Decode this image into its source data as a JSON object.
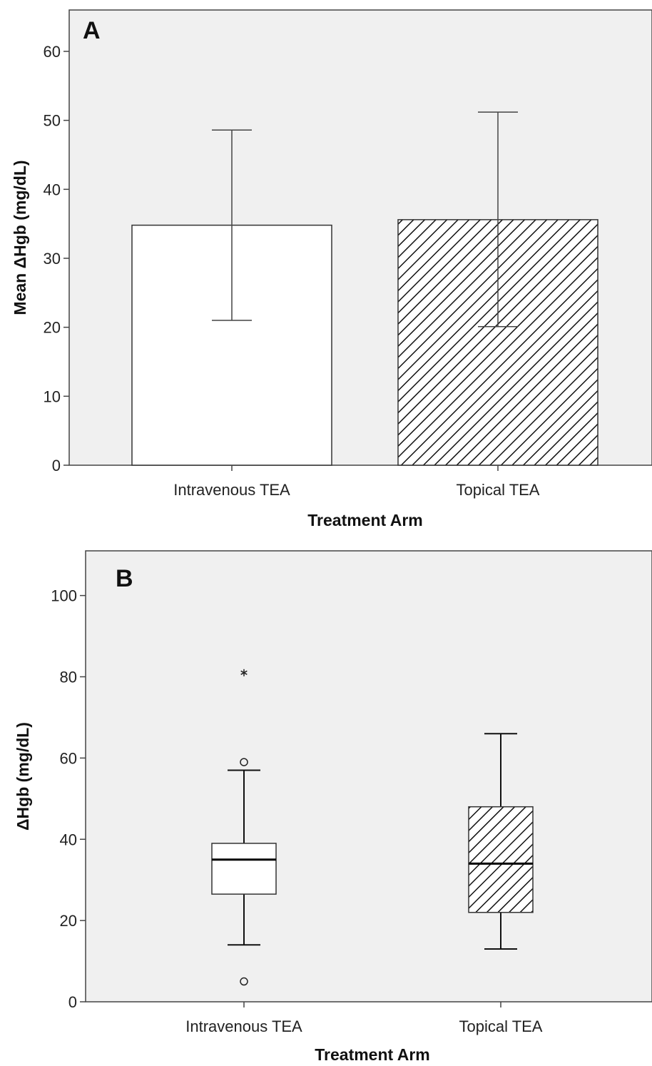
{
  "chart_data": [
    {
      "panel_label": "A",
      "type": "bar",
      "xlabel": "Treatment Arm",
      "ylabel": "Mean ΔHgb (mg/dL)",
      "categories": [
        "Intravenous TEA",
        "Topical TEA"
      ],
      "values": [
        34.8,
        35.6
      ],
      "error_low": [
        21.0,
        20.1
      ],
      "error_high": [
        48.6,
        51.2
      ],
      "fills": [
        "plain",
        "hatched"
      ],
      "ylim": [
        0,
        66
      ],
      "yticks": [
        0,
        10,
        20,
        30,
        40,
        50,
        60
      ],
      "grid": false,
      "background": "#f0f0f0"
    },
    {
      "panel_label": "B",
      "type": "box",
      "xlabel": "Treatment Arm",
      "ylabel": "ΔHgb (mg/dL)",
      "categories": [
        "Intravenous TEA",
        "Topical TEA"
      ],
      "boxes": [
        {
          "whisker_low": 14,
          "q1": 26.5,
          "median": 35,
          "q3": 39,
          "whisker_high": 57,
          "outliers": [
            59,
            5
          ],
          "extremes": [
            81
          ]
        },
        {
          "whisker_low": 13,
          "q1": 22,
          "median": 34,
          "q3": 48,
          "whisker_high": 66,
          "outliers": [],
          "extremes": []
        }
      ],
      "fills": [
        "plain",
        "hatched"
      ],
      "ylim": [
        0,
        111
      ],
      "yticks": [
        0,
        20,
        40,
        60,
        80,
        100
      ],
      "grid": false,
      "background": "#f0f0f0"
    }
  ]
}
